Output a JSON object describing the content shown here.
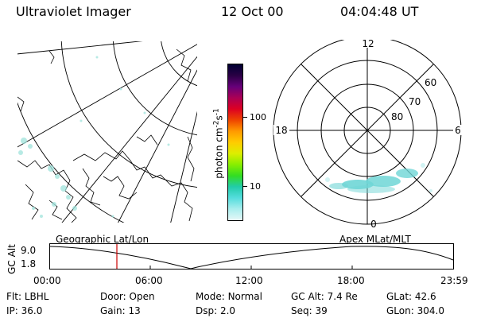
{
  "header": {
    "instrument": "Ultraviolet Imager",
    "date": "12 Oct 00",
    "time": "04:04:48 UT"
  },
  "colorbar": {
    "label_main": "photon cm",
    "label_exp1": "-2",
    "label_mid": "s",
    "label_exp2": "-1",
    "ticks": [
      "100",
      "10"
    ],
    "colors": [
      "#000033",
      "#2a0044",
      "#66007a",
      "#aa0055",
      "#dd0022",
      "#ee4400",
      "#ff9900",
      "#ffcc00",
      "#ddee00",
      "#88ee00",
      "#33dd22",
      "#22ccaa",
      "#55dddd",
      "#aaeeee",
      "#e6f7f7"
    ]
  },
  "polar_plot": {
    "mlt_labels": {
      "top": "12",
      "left": "18",
      "right": "6",
      "bottom": "0"
    },
    "lat_labels": [
      "60",
      "70",
      "80"
    ]
  },
  "timeline": {
    "left_title": "Geographic Lat/Lon",
    "right_title": "Apex MLat/MLT",
    "axis_label": "GC Alt",
    "y_top": "9.0",
    "y_bottom": "1.8",
    "time_ticks": [
      "00:00",
      "06:00",
      "12:00",
      "18:00",
      "23:59"
    ],
    "marker_color": "#cc0000"
  },
  "status": {
    "row1": [
      {
        "label": "Flt:",
        "value": "LBHL"
      },
      {
        "label": "Door:",
        "value": "Open"
      },
      {
        "label": "Mode:",
        "value": "Normal"
      },
      {
        "label": "GC Alt:",
        "value": "7.4 Re"
      },
      {
        "label": "GLat:",
        "value": "42.6"
      }
    ],
    "row2": [
      {
        "label": "IP:",
        "value": "36.0"
      },
      {
        "label": "Gain:",
        "value": "13"
      },
      {
        "label": "Dsp:",
        "value": "2.0"
      },
      {
        "label": "Seq:",
        "value": "39"
      },
      {
        "label": "GLon:",
        "value": "304.0"
      }
    ]
  }
}
